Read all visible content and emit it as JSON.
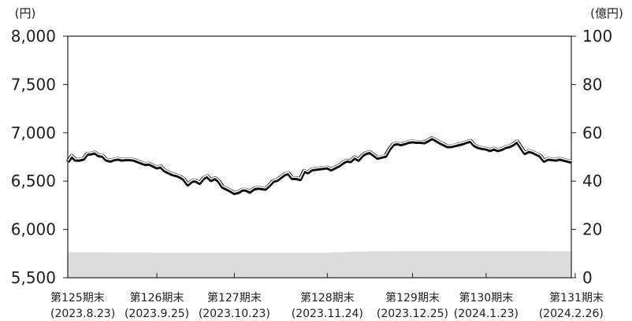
{
  "chart_data": {
    "type": "line",
    "left_unit": "(円)",
    "right_unit": "(億円)",
    "y_left": {
      "min": 5500,
      "max": 8000,
      "ticks": [
        "5,500",
        "6,000",
        "6,500",
        "7,000",
        "7,500",
        "8,000"
      ],
      "tick_values": [
        5500,
        6000,
        6500,
        7000,
        7500,
        8000
      ]
    },
    "y_right": {
      "min": 0,
      "max": 100,
      "ticks": [
        "0",
        "20",
        "40",
        "60",
        "80",
        "100"
      ],
      "tick_values": [
        0,
        20,
        40,
        60,
        80,
        100
      ]
    },
    "x_labels": [
      {
        "period": "第125期末",
        "date": "(2023.8.23)"
      },
      {
        "period": "第126期末",
        "date": "(2023.9.25)"
      },
      {
        "period": "第127期末",
        "date": "(2023.10.23)"
      },
      {
        "period": "第128期末",
        "date": "(2023.11.24)"
      },
      {
        "period": "第129期末",
        "date": "(2023.12.25)"
      },
      {
        "period": "第130期末",
        "date": "(2024.1.23)"
      },
      {
        "period": "第131期末",
        "date": "(2024.2.26)"
      }
    ],
    "x_label_index": [
      0,
      23,
      43,
      67,
      89,
      108,
      131
    ],
    "grid": false,
    "series": [
      {
        "axis": "left",
        "style": "double-line",
        "values": [
          6700,
          6760,
          6720,
          6720,
          6730,
          6780,
          6785,
          6795,
          6765,
          6760,
          6720,
          6710,
          6725,
          6730,
          6720,
          6725,
          6725,
          6720,
          6705,
          6690,
          6675,
          6680,
          6660,
          6640,
          6650,
          6610,
          6590,
          6570,
          6560,
          6545,
          6520,
          6465,
          6500,
          6505,
          6480,
          6530,
          6550,
          6510,
          6530,
          6500,
          6440,
          6420,
          6400,
          6375,
          6385,
          6410,
          6410,
          6390,
          6420,
          6430,
          6425,
          6420,
          6455,
          6500,
          6510,
          6540,
          6570,
          6580,
          6530,
          6530,
          6520,
          6605,
          6590,
          6620,
          6625,
          6630,
          6635,
          6640,
          6620,
          6640,
          6660,
          6690,
          6710,
          6705,
          6745,
          6720,
          6765,
          6790,
          6800,
          6770,
          6740,
          6750,
          6760,
          6830,
          6880,
          6890,
          6880,
          6890,
          6905,
          6910,
          6905,
          6905,
          6900,
          6920,
          6945,
          6925,
          6900,
          6880,
          6860,
          6860,
          6870,
          6880,
          6890,
          6905,
          6915,
          6870,
          6850,
          6840,
          6835,
          6820,
          6835,
          6820,
          6830,
          6850,
          6860,
          6880,
          6910,
          6850,
          6790,
          6810,
          6800,
          6780,
          6760,
          6710,
          6730,
          6725,
          6720,
          6730,
          6720,
          6710,
          6700
        ]
      },
      {
        "axis": "right",
        "style": "area",
        "values": [
          10.6,
          10.6,
          10.6,
          10.6,
          10.6,
          10.6,
          10.6,
          10.6,
          10.6,
          10.6,
          10.5,
          10.5,
          10.5,
          10.5,
          10.5,
          10.5,
          10.5,
          10.5,
          10.5,
          10.5,
          10.5,
          10.5,
          10.4,
          10.4,
          10.4,
          10.4,
          10.4,
          10.4,
          10.4,
          10.4,
          10.4,
          10.4,
          10.4,
          10.4,
          10.4,
          10.4,
          10.4,
          10.3,
          10.3,
          10.3,
          10.3,
          10.3,
          10.3,
          10.3,
          10.3,
          10.3,
          10.3,
          10.3,
          10.3,
          10.3,
          10.3,
          10.3,
          10.3,
          10.3,
          10.3,
          10.3,
          10.3,
          10.3,
          10.4,
          10.4,
          10.4,
          10.4,
          10.4,
          10.4,
          10.4,
          10.4,
          10.4,
          10.4,
          10.4,
          10.6,
          10.6,
          10.6,
          10.7,
          10.8,
          10.8,
          10.8,
          10.8,
          10.9,
          10.9,
          10.9,
          10.9,
          10.9,
          10.9,
          10.9,
          10.9,
          11.0,
          11.0,
          11.0,
          11.0,
          11.0,
          11.0,
          11.0,
          11.0,
          11.0,
          11.0,
          11.0,
          11.0,
          11.0,
          11.0,
          11.0,
          11.0,
          11.0,
          11.0,
          11.0,
          11.0,
          11.0,
          11.0,
          11.0,
          11.0,
          11.0,
          11.0,
          11.0,
          11.0,
          11.0,
          11.0,
          11.0,
          11.0,
          11.0,
          11.0,
          11.0,
          11.0,
          11.0,
          11.0,
          11.0,
          11.0,
          10.9,
          10.9,
          10.9,
          10.9,
          10.9,
          10.9
        ]
      }
    ]
  }
}
